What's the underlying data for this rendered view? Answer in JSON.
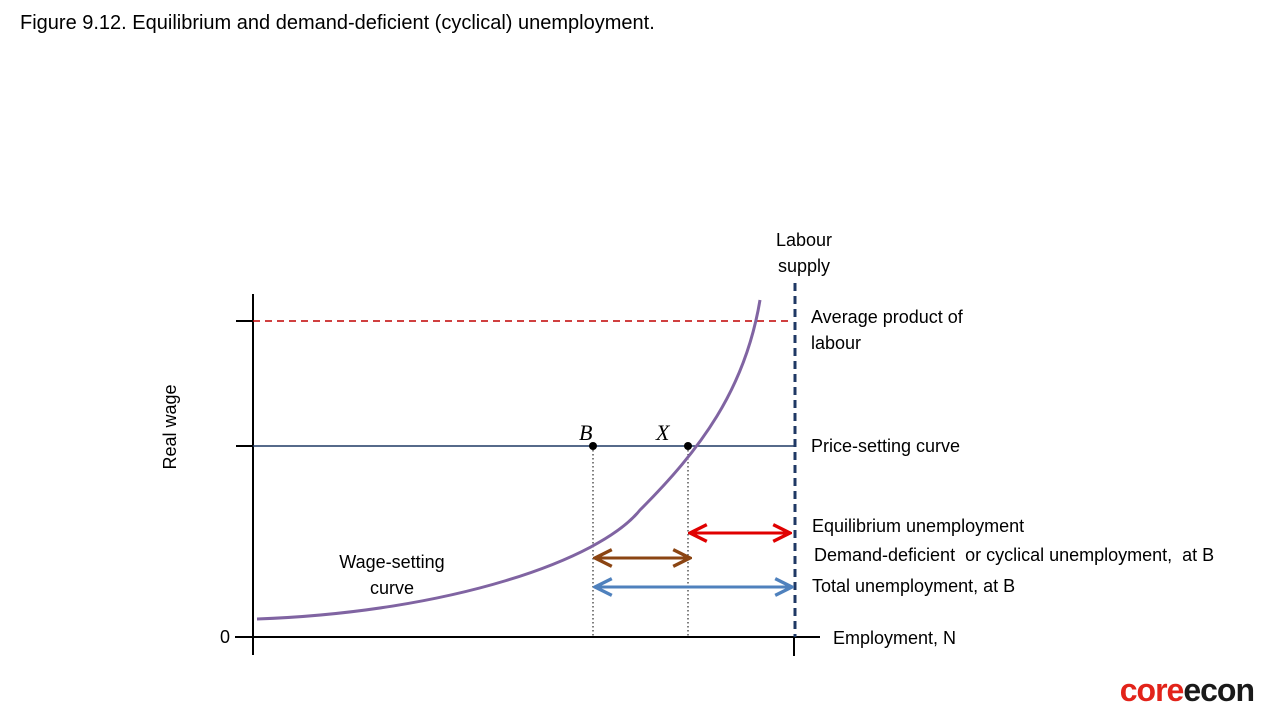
{
  "title": "Figure 9.12. Equilibrium and demand-deficient (cyclical) unemployment.",
  "axes": {
    "y_label": "Real wage",
    "x_label": "Employment, N",
    "origin_label": "0"
  },
  "labels": {
    "labour_supply_line1": "Labour",
    "labour_supply_line2": "supply",
    "average_product_line1": "Average product of",
    "average_product_line2": "labour",
    "price_setting": "Price-setting curve",
    "wage_setting_line1": "Wage-setting",
    "wage_setting_line2": "curve",
    "equilibrium_unemployment": "Equilibrium unemployment",
    "demand_deficient_unemployment": "Demand-deficient  or cyclical unemployment,  at B",
    "total_unemployment": "Total unemployment, at B"
  },
  "points": {
    "b": "B",
    "x": "X"
  },
  "colors": {
    "wage_setting": "#8064a2",
    "price_setting": "#1f3864",
    "average_product": "#c00000",
    "labour_supply": "#1f3864",
    "equilibrium_arrow": "#e00000",
    "demand_deficient_arrow": "#8b4513",
    "total_arrow": "#4f81bd"
  },
  "logo": {
    "part1": "core",
    "part2": "econ"
  }
}
